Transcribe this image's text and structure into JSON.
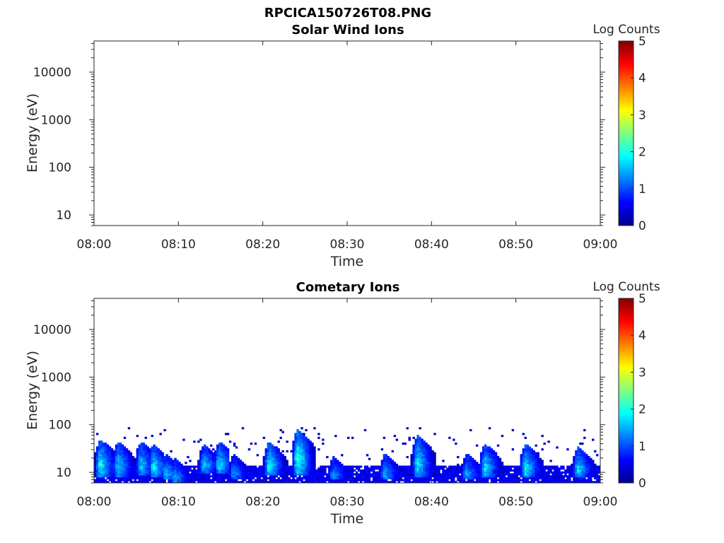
{
  "figure": {
    "title": "RPCICA150726T08.PNG"
  },
  "chart_data": [
    {
      "type": "heatmap",
      "title": "Solar Wind Ions",
      "xlabel": "Time",
      "ylabel": "Energy (eV)",
      "x_tick_labels": [
        "08:00",
        "08:10",
        "08:20",
        "08:30",
        "08:40",
        "08:50",
        "09:00"
      ],
      "xlim_minutes": [
        0,
        60
      ],
      "y_scale": "log",
      "ylim": [
        6,
        45000
      ],
      "y_tick_labels": [
        "10",
        "100",
        "1000",
        "10000"
      ],
      "colorbar": {
        "label": "Log Counts",
        "range": [
          0,
          5
        ],
        "ticks": [
          "0",
          "1",
          "2",
          "3",
          "4",
          "5"
        ],
        "colormap": "jet"
      },
      "events": []
    },
    {
      "type": "heatmap",
      "title": "Cometary Ions",
      "xlabel": "Time",
      "ylabel": "Energy (eV)",
      "x_tick_labels": [
        "08:00",
        "08:10",
        "08:20",
        "08:30",
        "08:40",
        "08:50",
        "09:00"
      ],
      "xlim_minutes": [
        0,
        60
      ],
      "y_scale": "log",
      "ylim": [
        6,
        45000
      ],
      "y_tick_labels": [
        "10",
        "100",
        "1000",
        "10000"
      ],
      "colorbar": {
        "label": "Log Counts",
        "range": [
          0,
          5
        ],
        "ticks": [
          "0",
          "1",
          "2",
          "3",
          "4",
          "5"
        ],
        "colormap": "jet"
      },
      "background_band": {
        "start_min": 0,
        "end_min": 60,
        "e_low": 6,
        "e_high": 14,
        "level": 0.4
      },
      "events": [
        {
          "t": 0.7,
          "e_low": 8,
          "e_high": 50,
          "peak": 1.9
        },
        {
          "t": 2.8,
          "e_low": 8,
          "e_high": 45,
          "peak": 1.7
        },
        {
          "t": 5.5,
          "e_low": 9,
          "e_high": 45,
          "peak": 1.6
        },
        {
          "t": 7.0,
          "e_low": 8,
          "e_high": 40,
          "peak": 1.8
        },
        {
          "t": 8.5,
          "e_low": 7,
          "e_high": 25,
          "peak": 1.5
        },
        {
          "t": 9.5,
          "e_low": 6,
          "e_high": 20,
          "peak": 1.4
        },
        {
          "t": 13.0,
          "e_low": 10,
          "e_high": 40,
          "peak": 1.6
        },
        {
          "t": 14.8,
          "e_low": 10,
          "e_high": 45,
          "peak": 1.7
        },
        {
          "t": 16.5,
          "e_low": 7,
          "e_high": 25,
          "peak": 1.3
        },
        {
          "t": 20.7,
          "e_low": 9,
          "e_high": 45,
          "peak": 1.9
        },
        {
          "t": 24.1,
          "e_low": 9,
          "e_high": 80,
          "peak": 2.1
        },
        {
          "t": 28.3,
          "e_low": 7,
          "e_high": 22,
          "peak": 1.3
        },
        {
          "t": 34.4,
          "e_low": 7,
          "e_high": 25,
          "peak": 1.4
        },
        {
          "t": 38.3,
          "e_low": 8,
          "e_high": 60,
          "peak": 1.8
        },
        {
          "t": 44.1,
          "e_low": 7,
          "e_high": 25,
          "peak": 1.4
        },
        {
          "t": 46.3,
          "e_low": 8,
          "e_high": 40,
          "peak": 1.8
        },
        {
          "t": 51.1,
          "e_low": 8,
          "e_high": 40,
          "peak": 1.8
        },
        {
          "t": 57.3,
          "e_low": 8,
          "e_high": 35,
          "peak": 1.7
        }
      ]
    }
  ]
}
